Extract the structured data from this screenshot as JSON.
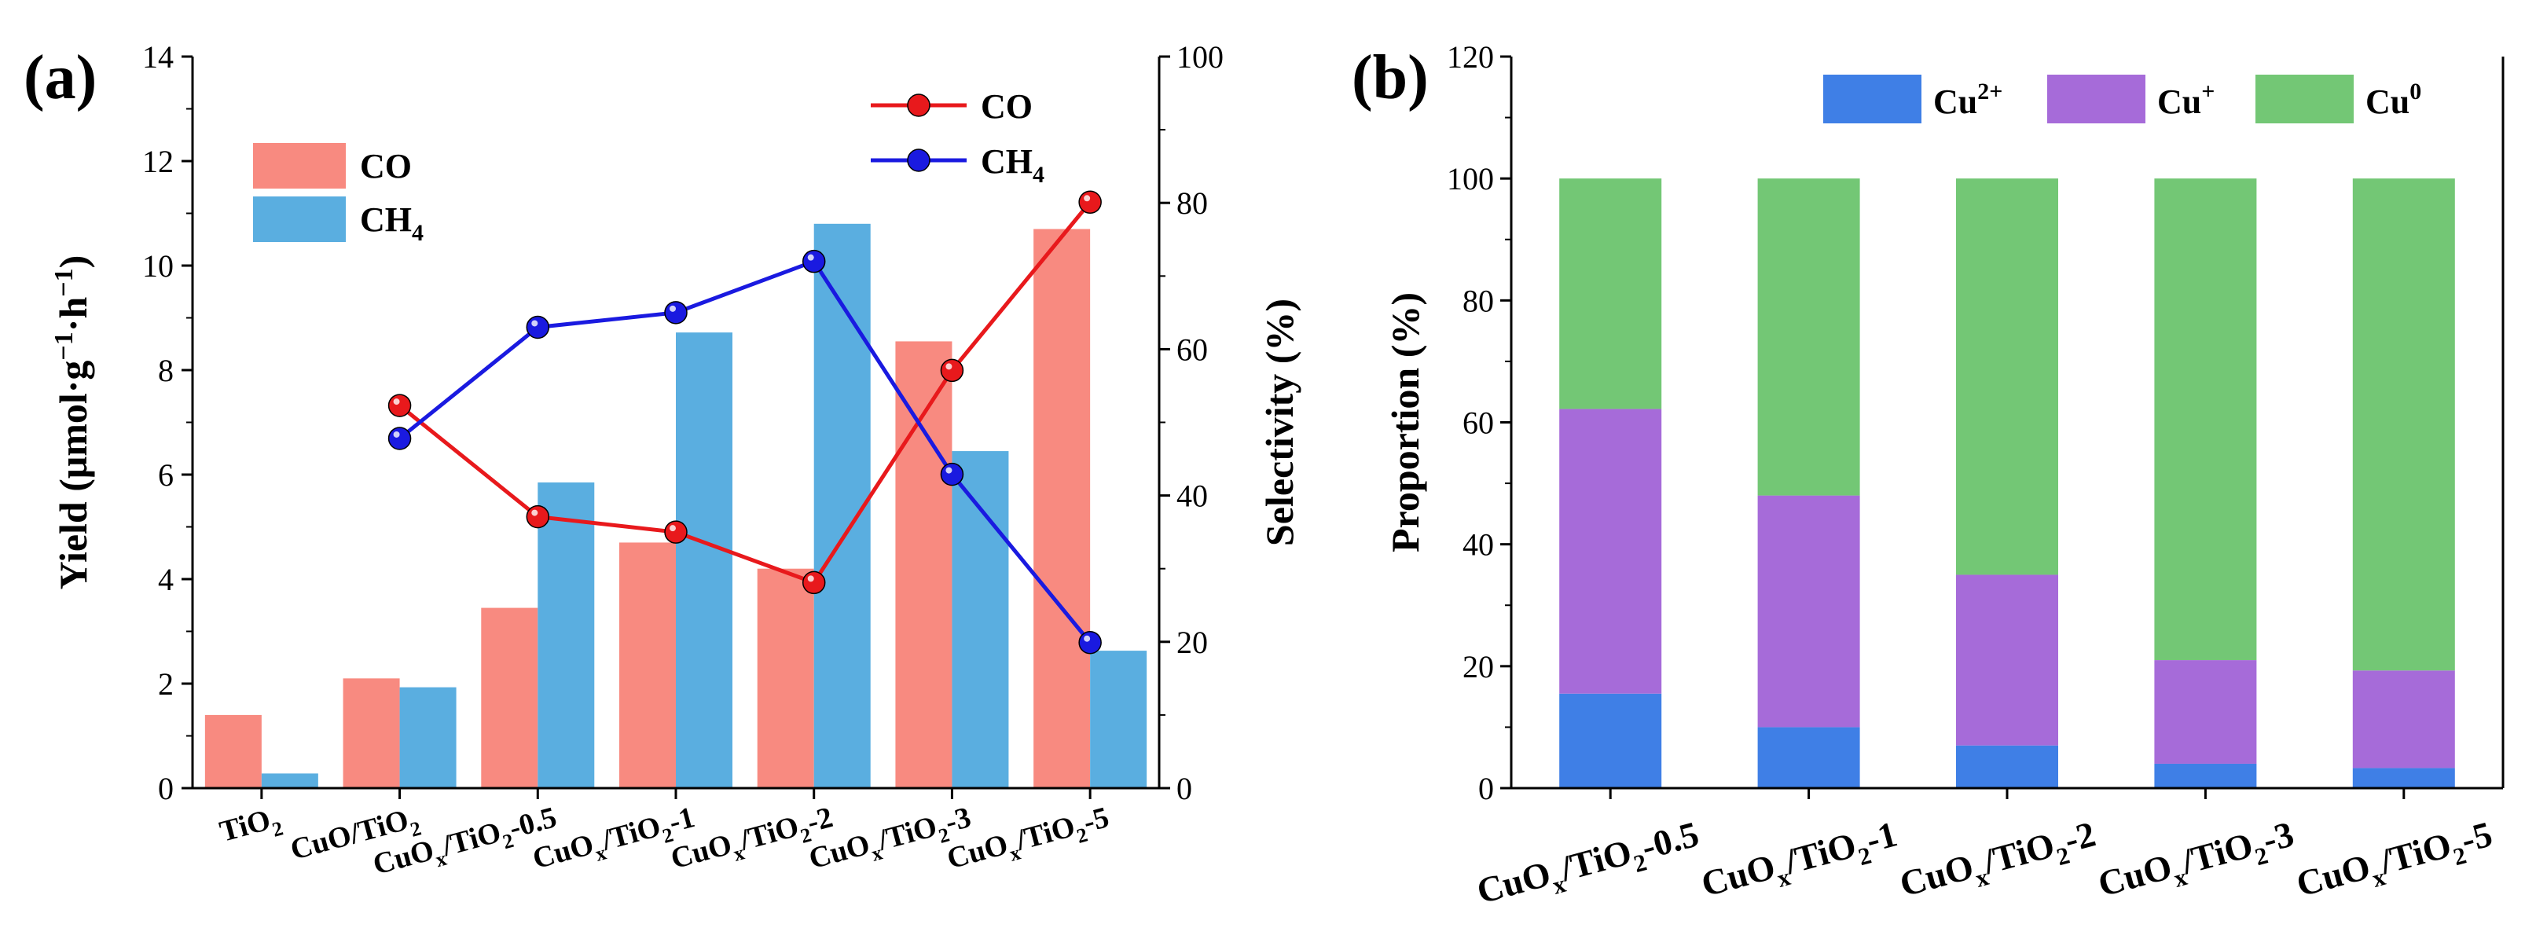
{
  "chart_data": [
    {
      "panel": "(a)",
      "type": "bar",
      "categories": [
        {
          "main": "TiO",
          "sub": "2",
          "tail": ""
        },
        {
          "main": "CuO/TiO",
          "sub": "2",
          "tail": ""
        },
        {
          "main": "CuO",
          "sub": "x",
          "mid": "/TiO",
          "sub2": "2",
          "tail": "-0.5"
        },
        {
          "main": "CuO",
          "sub": "x",
          "mid": "/TiO",
          "sub2": "2",
          "tail": "-1"
        },
        {
          "main": "CuO",
          "sub": "x",
          "mid": "/TiO",
          "sub2": "2",
          "tail": "-2"
        },
        {
          "main": "CuO",
          "sub": "x",
          "mid": "/TiO",
          "sub2": "2",
          "tail": "-3"
        },
        {
          "main": "CuO",
          "sub": "x",
          "mid": "/TiO",
          "sub2": "2",
          "tail": "-5"
        }
      ],
      "bar_series": [
        {
          "name": "CO",
          "label_main": "CO",
          "label_sub": "",
          "color": "#F88A80",
          "values": [
            1.4,
            2.1,
            3.45,
            4.7,
            4.2,
            8.55,
            10.7
          ]
        },
        {
          "name": "CH4",
          "label_main": "CH",
          "label_sub": "4",
          "color": "#5AAEE0",
          "values": [
            0.28,
            1.93,
            5.85,
            8.72,
            10.8,
            6.45,
            2.63
          ]
        }
      ],
      "line_series": [
        {
          "name": "CO",
          "label_main": "CO",
          "label_sub": "",
          "color": "#E8191C",
          "values": [
            null,
            52.3,
            37.1,
            35.0,
            28.1,
            57.1,
            80.1
          ]
        },
        {
          "name": "CH4",
          "label_main": "CH",
          "label_sub": "4",
          "color": "#1A1AE0",
          "values": [
            null,
            47.8,
            63.0,
            65.0,
            72.0,
            42.9,
            19.9
          ]
        }
      ],
      "ylabel_left": "Yield (μmol·g⁻¹·h⁻¹)",
      "ylabel_left_parts": {
        "a": "Yield (μmol·g",
        "sup1": "−1",
        "b": "·h",
        "sup2": "−1",
        "c": ")"
      },
      "ylim_left": [
        0,
        14
      ],
      "yticks_left": [
        "0",
        "2",
        "4",
        "6",
        "8",
        "10",
        "12",
        "14"
      ],
      "ylabel_right": "Selectivity (%)",
      "ylim_right": [
        0,
        100
      ],
      "yticks_right": [
        "0",
        "20",
        "40",
        "60",
        "80",
        "100"
      ]
    },
    {
      "panel": "(b)",
      "type": "bar",
      "stacked": true,
      "categories": [
        {
          "main": "CuO",
          "sub": "x",
          "mid": "/TiO",
          "sub2": "2",
          "tail": "-0.5"
        },
        {
          "main": "CuO",
          "sub": "x",
          "mid": "/TiO",
          "sub2": "2",
          "tail": "-1"
        },
        {
          "main": "CuO",
          "sub": "x",
          "mid": "/TiO",
          "sub2": "2",
          "tail": "-2"
        },
        {
          "main": "CuO",
          "sub": "x",
          "mid": "/TiO",
          "sub2": "2",
          "tail": "-3"
        },
        {
          "main": "CuO",
          "sub": "x",
          "mid": "/TiO",
          "sub2": "2",
          "tail": "-5"
        }
      ],
      "series": [
        {
          "name": "Cu2+",
          "label_main": "Cu",
          "label_sup": "2+",
          "color": "#3F7FE6",
          "values": [
            15.5,
            10.0,
            7.0,
            4.0,
            3.3
          ]
        },
        {
          "name": "Cu+",
          "label_main": "Cu",
          "label_sup": "+",
          "color": "#A66BD9",
          "values": [
            46.7,
            38.0,
            28.0,
            17.0,
            16.0
          ]
        },
        {
          "name": "Cu0",
          "label_main": "Cu",
          "label_sup": "0",
          "color": "#73C775",
          "values": [
            37.8,
            52.0,
            65.0,
            79.0,
            80.7
          ]
        }
      ],
      "ylabel": "Proportion (%)",
      "ylim": [
        0,
        120
      ],
      "yticks": [
        "0",
        "20",
        "40",
        "60",
        "80",
        "100",
        "120"
      ]
    }
  ]
}
